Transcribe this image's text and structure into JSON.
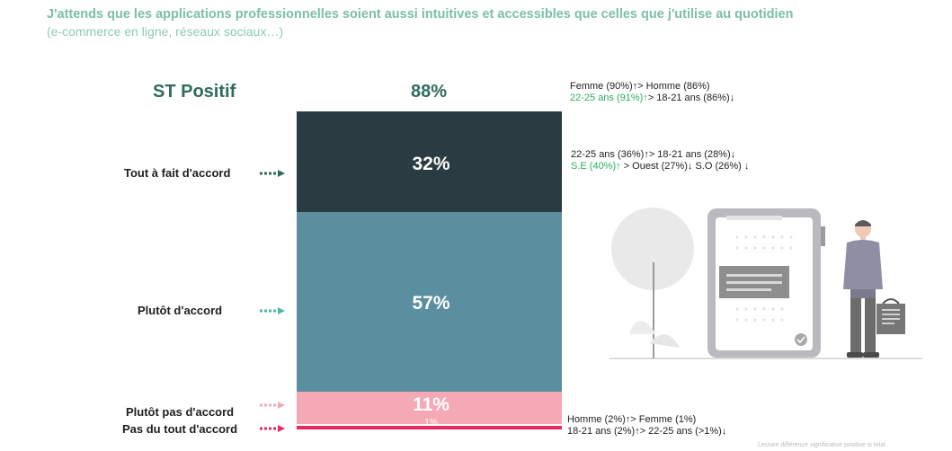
{
  "header": {
    "title": "J'attends que les applications professionnelles soient aussi intuitives et accessibles que celles que j'utilise au quotidien",
    "subtitle": "(e-commerce en ligne, réseaux sociaux…)"
  },
  "summary": {
    "label": "ST Positif",
    "value": "88%"
  },
  "chart_data": {
    "type": "bar",
    "stacked": true,
    "categories": [
      "Tout à fait d'accord",
      "Plutôt d'accord",
      "Plutôt pas d'accord",
      "Pas du tout d'accord"
    ],
    "values": [
      32,
      57,
      11,
      1
    ],
    "value_labels": [
      "32%",
      "57%",
      "11%",
      "1%"
    ],
    "colors": [
      "#2a3b41",
      "#5b8f9f",
      "#f5a9b6",
      "#e8295f"
    ],
    "arrow_colors": [
      "#2f6b5e",
      "#4fb8a6",
      "#f5a9b6",
      "#e8295f"
    ]
  },
  "notes": {
    "top": [
      [
        {
          "text": "Femme (90%)↑> Homme (86%)",
          "green": false
        }
      ],
      [
        {
          "text": "22-25 ans (91%)↑",
          "green": true
        },
        {
          "text": "> 18-21 ans (86%)↓",
          "green": false
        }
      ]
    ],
    "tout_a_fait": [
      [
        {
          "text": "22-25 ans (36%)↑> 18-21 ans (28%)↓",
          "green": false
        }
      ],
      [
        {
          "text": "S.E (40%)↑",
          "green": true
        },
        {
          "text": " > Ouest (27%)↓ S.O (26%) ↓",
          "green": false
        }
      ]
    ],
    "bottom": [
      [
        {
          "text": "Homme (2%)↑> Femme (1%)",
          "green": false
        }
      ],
      [
        {
          "text": "18-21 ans (2%)↑> 22-25 ans (>1%)↓",
          "green": false
        }
      ]
    ]
  },
  "footnote": "Lecture différence significative positive si total",
  "illustration": {
    "icon": "business-person-with-tablet-illustration"
  }
}
